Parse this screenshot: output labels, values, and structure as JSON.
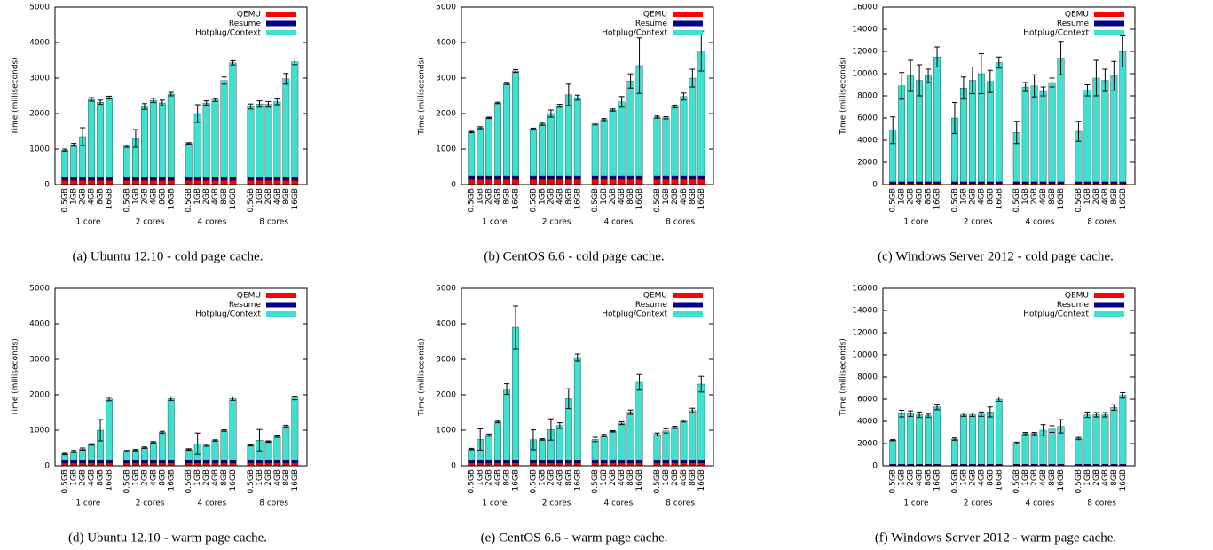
{
  "chart_data": [
    {
      "type": "bar",
      "stacked": true,
      "title": "(a) Ubuntu 12.10 - cold page cache.",
      "ylabel": "Time (milliseconds)",
      "categories": [
        "0.5GB",
        "1GB",
        "2GB",
        "4GB",
        "8GB",
        "16GB",
        "0.5GB",
        "1GB",
        "2GB",
        "4GB",
        "8GB",
        "16GB",
        "0.5GB",
        "1GB",
        "2GB",
        "4GB",
        "8GB",
        "16GB",
        "0.5GB",
        "1GB",
        "2GB",
        "4GB",
        "8GB",
        "16GB"
      ],
      "groups": [
        "1 core",
        "2 cores",
        "4 cores",
        "8 cores"
      ],
      "ylim": [
        0,
        5000
      ],
      "yticks": [
        0,
        1000,
        2000,
        3000,
        4000,
        5000
      ],
      "legend": "upper right",
      "series": [
        {
          "name": "QEMU",
          "color": "#ff0000",
          "values": [
            120,
            120,
            120,
            120,
            120,
            120,
            120,
            120,
            120,
            120,
            120,
            120,
            120,
            120,
            120,
            120,
            120,
            120,
            120,
            120,
            120,
            120,
            120,
            120
          ]
        },
        {
          "name": "Resume",
          "color": "#00008b",
          "values": [
            100,
            100,
            100,
            100,
            100,
            100,
            100,
            100,
            100,
            100,
            100,
            100,
            100,
            100,
            100,
            100,
            100,
            100,
            100,
            100,
            100,
            100,
            100,
            100
          ]
        },
        {
          "name": "Hotplug/Context",
          "color": "#40e0d0",
          "values": [
            750,
            900,
            1130,
            2180,
            2100,
            2230,
            860,
            1080,
            1980,
            2150,
            2080,
            2330,
            940,
            1780,
            2080,
            2160,
            2710,
            3210,
            1980,
            2050,
            2040,
            2110,
            2760,
            3240
          ],
          "errors": [
            30,
            40,
            250,
            50,
            60,
            40,
            30,
            250,
            80,
            60,
            80,
            50,
            20,
            250,
            60,
            40,
            100,
            60,
            70,
            90,
            80,
            80,
            150,
            80
          ]
        }
      ]
    },
    {
      "type": "bar",
      "stacked": true,
      "title": "(b) CentOS 6.6 - cold page cache.",
      "ylabel": "Time (milliseconds)",
      "categories": [
        "0.5GB",
        "1GB",
        "2GB",
        "4GB",
        "8GB",
        "16GB",
        "0.5GB",
        "1GB",
        "2GB",
        "4GB",
        "8GB",
        "16GB",
        "0.5GB",
        "1GB",
        "2GB",
        "4GB",
        "8GB",
        "16GB",
        "0.5GB",
        "1GB",
        "2GB",
        "4GB",
        "8GB",
        "16GB"
      ],
      "groups": [
        "1 core",
        "2 cores",
        "4 cores",
        "8 cores"
      ],
      "ylim": [
        0,
        5000
      ],
      "yticks": [
        0,
        1000,
        2000,
        3000,
        4000,
        5000
      ],
      "legend": "upper right",
      "series": [
        {
          "name": "QEMU",
          "color": "#ff0000",
          "values": [
            150,
            150,
            150,
            150,
            150,
            150,
            150,
            150,
            150,
            150,
            150,
            150,
            150,
            150,
            150,
            150,
            150,
            150,
            150,
            150,
            150,
            150,
            150,
            150
          ]
        },
        {
          "name": "Resume",
          "color": "#00008b",
          "values": [
            100,
            100,
            100,
            100,
            100,
            100,
            100,
            100,
            100,
            100,
            100,
            100,
            100,
            100,
            100,
            100,
            100,
            100,
            100,
            100,
            100,
            100,
            100,
            100
          ]
        },
        {
          "name": "Hotplug/Context",
          "color": "#40e0d0",
          "values": [
            1230,
            1350,
            1630,
            2050,
            2600,
            2950,
            1320,
            1450,
            1750,
            1970,
            2280,
            2200,
            1470,
            1580,
            1850,
            2080,
            2670,
            3100,
            1650,
            1630,
            1950,
            2230,
            2750,
            3510
          ],
          "errors": [
            20,
            30,
            20,
            20,
            30,
            40,
            20,
            30,
            100,
            40,
            300,
            70,
            40,
            30,
            30,
            150,
            200,
            780,
            30,
            30,
            40,
            100,
            250,
            560
          ]
        }
      ]
    },
    {
      "type": "bar",
      "stacked": true,
      "title": "(c) Windows Server 2012 - cold page cache.",
      "ylabel": "Time (milliseconds)",
      "categories": [
        "0.5GB",
        "1GB",
        "2GB",
        "4GB",
        "8GB",
        "16GB",
        "0.5GB",
        "1GB",
        "2GB",
        "4GB",
        "8GB",
        "16GB",
        "0.5GB",
        "1GB",
        "2GB",
        "4GB",
        "8GB",
        "16GB",
        "0.5GB",
        "1GB",
        "2GB",
        "4GB",
        "8GB",
        "16GB"
      ],
      "groups": [
        "1 core",
        "2 cores",
        "4 cores",
        "8 cores"
      ],
      "ylim": [
        0,
        16000
      ],
      "yticks": [
        0,
        2000,
        4000,
        6000,
        8000,
        10000,
        12000,
        14000,
        16000
      ],
      "legend": "upper right",
      "series": [
        {
          "name": "QEMU",
          "color": "#ff0000",
          "values": [
            100,
            100,
            100,
            100,
            100,
            100,
            100,
            100,
            100,
            100,
            100,
            100,
            100,
            100,
            100,
            100,
            100,
            100,
            100,
            100,
            100,
            100,
            100,
            100
          ]
        },
        {
          "name": "Resume",
          "color": "#00008b",
          "values": [
            150,
            150,
            150,
            150,
            150,
            150,
            150,
            150,
            150,
            150,
            150,
            150,
            150,
            150,
            150,
            150,
            150,
            150,
            150,
            150,
            150,
            150,
            150,
            150
          ]
        },
        {
          "name": "Hotplug/Context",
          "color": "#40e0d0",
          "values": [
            4650,
            8650,
            9550,
            9150,
            9550,
            11250,
            5750,
            8450,
            9150,
            9750,
            9050,
            10750,
            4450,
            8550,
            8650,
            8150,
            8950,
            11150,
            4550,
            8250,
            9350,
            9150,
            9550,
            11750
          ],
          "errors": [
            1200,
            1200,
            1400,
            1400,
            600,
            900,
            1400,
            1000,
            1200,
            1800,
            1000,
            500,
            1000,
            400,
            1000,
            400,
            400,
            1500,
            900,
            500,
            1600,
            1000,
            1300,
            1400
          ]
        }
      ]
    },
    {
      "type": "bar",
      "stacked": true,
      "title": "(d) Ubuntu 12.10 - warm page cache.",
      "ylabel": "Time (milliseconds)",
      "categories": [
        "0.5GB",
        "1GB",
        "2GB",
        "4GB",
        "8GB",
        "16GB",
        "0.5GB",
        "1GB",
        "2GB",
        "4GB",
        "8GB",
        "16GB",
        "0.5GB",
        "1GB",
        "2GB",
        "4GB",
        "8GB",
        "16GB",
        "0.5GB",
        "1GB",
        "2GB",
        "4GB",
        "8GB",
        "16GB"
      ],
      "groups": [
        "1 core",
        "2 cores",
        "4 cores",
        "8 cores"
      ],
      "ylim": [
        0,
        5000
      ],
      "yticks": [
        0,
        1000,
        2000,
        3000,
        4000,
        5000
      ],
      "legend": "upper right",
      "series": [
        {
          "name": "QEMU",
          "color": "#ff0000",
          "values": [
            80,
            80,
            80,
            80,
            80,
            80,
            80,
            80,
            80,
            80,
            80,
            80,
            80,
            80,
            80,
            80,
            80,
            80,
            80,
            80,
            80,
            80,
            80,
            80
          ]
        },
        {
          "name": "Resume",
          "color": "#00008b",
          "values": [
            70,
            70,
            70,
            70,
            70,
            70,
            70,
            70,
            70,
            70,
            70,
            70,
            70,
            70,
            70,
            70,
            70,
            70,
            70,
            70,
            70,
            70,
            70,
            70
          ]
        },
        {
          "name": "Hotplug/Context",
          "color": "#40e0d0",
          "values": [
            180,
            250,
            320,
            450,
            850,
            1730,
            260,
            290,
            360,
            510,
            790,
            1740,
            310,
            470,
            430,
            560,
            840,
            1740,
            430,
            570,
            530,
            680,
            960,
            1760
          ],
          "errors": [
            20,
            30,
            30,
            20,
            300,
            50,
            20,
            20,
            20,
            20,
            30,
            50,
            20,
            300,
            30,
            20,
            20,
            50,
            20,
            300,
            20,
            30,
            30,
            50
          ]
        }
      ]
    },
    {
      "type": "bar",
      "stacked": true,
      "title": "(e) CentOS 6.6 - warm page cache.",
      "ylabel": "Time (milliseconds)",
      "categories": [
        "0.5GB",
        "1GB",
        "2GB",
        "4GB",
        "8GB",
        "16GB",
        "0.5GB",
        "1GB",
        "2GB",
        "4GB",
        "8GB",
        "16GB",
        "0.5GB",
        "1GB",
        "2GB",
        "4GB",
        "8GB",
        "16GB",
        "0.5GB",
        "1GB",
        "2GB",
        "4GB",
        "8GB",
        "16GB"
      ],
      "groups": [
        "1 core",
        "2 cores",
        "4 cores",
        "8 cores"
      ],
      "ylim": [
        0,
        5000
      ],
      "yticks": [
        0,
        1000,
        2000,
        3000,
        4000,
        5000
      ],
      "legend": "upper right",
      "series": [
        {
          "name": "QEMU",
          "color": "#ff0000",
          "values": [
            80,
            80,
            80,
            80,
            80,
            80,
            80,
            80,
            80,
            80,
            80,
            80,
            80,
            80,
            80,
            80,
            80,
            80,
            80,
            80,
            80,
            80,
            80,
            80
          ]
        },
        {
          "name": "Resume",
          "color": "#00008b",
          "values": [
            70,
            70,
            70,
            70,
            70,
            70,
            70,
            70,
            70,
            70,
            70,
            70,
            70,
            70,
            70,
            70,
            70,
            70,
            70,
            70,
            70,
            70,
            70,
            70
          ]
        },
        {
          "name": "Hotplug/Context",
          "color": "#40e0d0",
          "values": [
            320,
            590,
            710,
            1090,
            2010,
            3750,
            580,
            590,
            870,
            980,
            1740,
            2900,
            590,
            700,
            820,
            1050,
            1360,
            2200,
            730,
            830,
            930,
            1110,
            1410,
            2150
          ],
          "errors": [
            20,
            300,
            30,
            30,
            150,
            600,
            280,
            20,
            300,
            80,
            280,
            100,
            60,
            30,
            20,
            40,
            60,
            220,
            40,
            60,
            30,
            30,
            60,
            220
          ]
        }
      ]
    },
    {
      "type": "bar",
      "stacked": true,
      "title": "(f) Windows Server 2012 - warm page cache.",
      "ylabel": "Time (milliseconds)",
      "categories": [
        "0.5GB",
        "1GB",
        "2GB",
        "4GB",
        "8GB",
        "16GB",
        "0.5GB",
        "1GB",
        "2GB",
        "4GB",
        "8GB",
        "16GB",
        "0.5GB",
        "1GB",
        "2GB",
        "4GB",
        "8GB",
        "16GB",
        "0.5GB",
        "1GB",
        "2GB",
        "4GB",
        "8GB",
        "16GB"
      ],
      "groups": [
        "1 core",
        "2 cores",
        "4 cores",
        "8 cores"
      ],
      "ylim": [
        0,
        16000
      ],
      "yticks": [
        0,
        2000,
        4000,
        6000,
        8000,
        10000,
        12000,
        14000,
        16000
      ],
      "legend": "upper right",
      "series": [
        {
          "name": "QEMU",
          "color": "#ff0000",
          "values": [
            50,
            50,
            50,
            50,
            50,
            50,
            50,
            50,
            50,
            50,
            50,
            50,
            50,
            50,
            50,
            50,
            50,
            50,
            50,
            50,
            50,
            50,
            50,
            50
          ]
        },
        {
          "name": "Resume",
          "color": "#00008b",
          "values": [
            100,
            100,
            100,
            100,
            100,
            100,
            100,
            100,
            100,
            100,
            100,
            100,
            100,
            100,
            100,
            100,
            100,
            100,
            100,
            100,
            100,
            100,
            100,
            100
          ]
        },
        {
          "name": "Hotplug/Context",
          "color": "#40e0d0",
          "values": [
            2150,
            4550,
            4550,
            4450,
            4350,
            5150,
            2250,
            4450,
            4450,
            4500,
            4700,
            5850,
            1900,
            2750,
            2750,
            3050,
            3150,
            3400,
            2300,
            4450,
            4450,
            4450,
            5100,
            6200
          ],
          "errors": [
            50,
            300,
            250,
            250,
            150,
            250,
            100,
            150,
            150,
            200,
            450,
            200,
            80,
            100,
            100,
            500,
            300,
            600,
            100,
            250,
            200,
            200,
            250,
            250
          ]
        }
      ]
    }
  ]
}
